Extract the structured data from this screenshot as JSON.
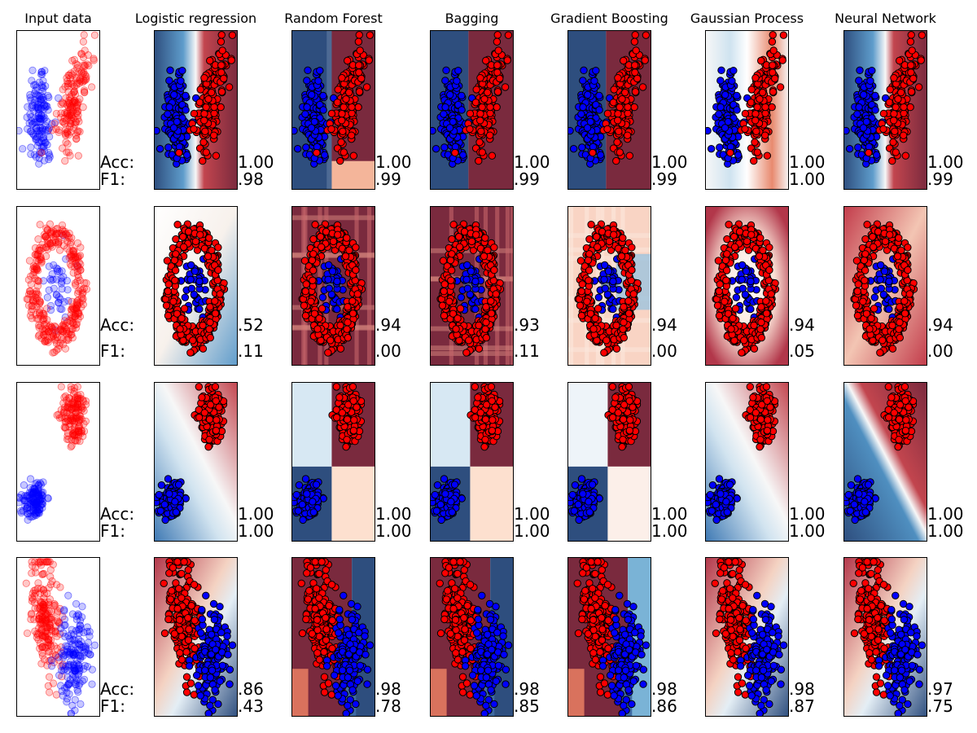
{
  "chart_data": {
    "type": "scatter",
    "description_columns": [
      "Input data",
      "Logistic regression",
      "Random Forest",
      "Bagging",
      "Gradient Boosting",
      "Gaussian Process",
      "Neural Network"
    ],
    "row_labels": {
      "acc": "Acc:",
      "f1": "F1:"
    },
    "colors": {
      "class0": "#0000ff",
      "class1": "#ff0000",
      "edge": "#000000"
    },
    "colormap": "RdBu",
    "rows": [
      {
        "name": "blobs-tilted",
        "input_shape": "two-ellipses",
        "metrics": [
          {
            "acc": "1.00",
            "f1": ".98"
          },
          {
            "acc": "1.00",
            "f1": ".99"
          },
          {
            "acc": "1.00",
            "f1": ".99"
          },
          {
            "acc": "1.00",
            "f1": ".99"
          },
          {
            "acc": "1.00",
            "f1": "1.00"
          },
          {
            "acc": "1.00",
            "f1": ".99"
          }
        ]
      },
      {
        "name": "ring",
        "input_shape": "ring",
        "metrics": [
          {
            "acc": ".52",
            "f1": ".11"
          },
          {
            "acc": ".94",
            "f1": ".00"
          },
          {
            "acc": ".93",
            "f1": ".11"
          },
          {
            "acc": ".94",
            "f1": ".00"
          },
          {
            "acc": ".94",
            "f1": ".05"
          },
          {
            "acc": ".94",
            "f1": ".00"
          }
        ]
      },
      {
        "name": "separated-blobs",
        "input_shape": "two-blobs",
        "metrics": [
          {
            "acc": "1.00",
            "f1": "1.00"
          },
          {
            "acc": "1.00",
            "f1": "1.00"
          },
          {
            "acc": "1.00",
            "f1": "1.00"
          },
          {
            "acc": "1.00",
            "f1": "1.00"
          },
          {
            "acc": "1.00",
            "f1": "1.00"
          },
          {
            "acc": "1.00",
            "f1": "1.00"
          }
        ]
      },
      {
        "name": "moons",
        "input_shape": "moons",
        "metrics": [
          {
            "acc": ".86",
            "f1": ".43"
          },
          {
            "acc": ".98",
            "f1": ".78"
          },
          {
            "acc": ".98",
            "f1": ".85"
          },
          {
            "acc": ".98",
            "f1": ".86"
          },
          {
            "acc": ".98",
            "f1": ".87"
          },
          {
            "acc": ".97",
            "f1": ".75"
          }
        ]
      }
    ]
  }
}
